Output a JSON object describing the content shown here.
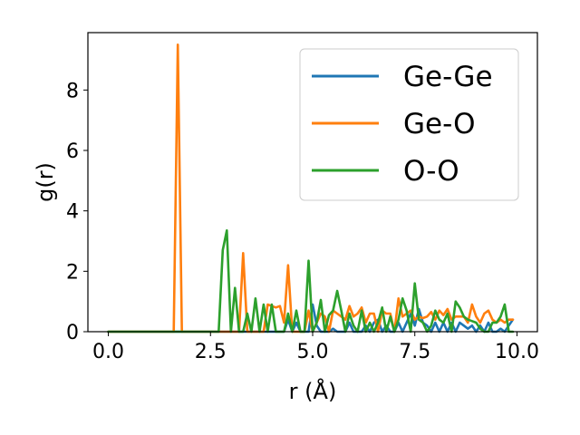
{
  "chart_data": {
    "type": "line",
    "title": "",
    "xlabel": "r (Å)",
    "ylabel": "g(r)",
    "xlim": [
      -0.5,
      10.5
    ],
    "ylim": [
      0,
      9.9
    ],
    "xticks": [
      0.0,
      2.5,
      5.0,
      7.5,
      10.0
    ],
    "xtick_labels": [
      "0.0",
      "2.5",
      "5.0",
      "7.5",
      "10.0"
    ],
    "yticks": [
      0,
      2,
      4,
      6,
      8
    ],
    "ytick_labels": [
      "0",
      "2",
      "4",
      "6",
      "8"
    ],
    "grid": false,
    "legend_position": "top-right",
    "series": [
      {
        "name": "Ge-Ge",
        "color": "#1f77b4",
        "x": [
          0.0,
          4.3,
          4.4,
          4.5,
          4.6,
          4.7,
          4.8,
          4.9,
          5.0,
          5.1,
          5.2,
          5.3,
          5.4,
          5.5,
          5.6,
          5.7,
          5.8,
          5.9,
          6.0,
          6.1,
          6.2,
          6.3,
          6.4,
          6.5,
          6.6,
          6.7,
          6.8,
          6.9,
          7.0,
          7.1,
          7.2,
          7.3,
          7.4,
          7.5,
          7.6,
          7.7,
          7.8,
          7.9,
          8.0,
          8.1,
          8.2,
          8.3,
          8.4,
          8.5,
          8.6,
          8.7,
          8.8,
          8.9,
          9.0,
          9.1,
          9.2,
          9.3,
          9.4,
          9.5,
          9.6,
          9.7,
          9.8,
          9.9
        ],
        "y": [
          0,
          0,
          0.4,
          0,
          0.3,
          0,
          0,
          0,
          0.9,
          0.2,
          0,
          0,
          0,
          0.1,
          0,
          0,
          0,
          0.3,
          0,
          0,
          0,
          0.2,
          0,
          0.3,
          0.4,
          0,
          0.2,
          0,
          0,
          0.3,
          0,
          0.3,
          0.6,
          0.2,
          0.75,
          0.3,
          0.2,
          0,
          0.3,
          0,
          0.3,
          0,
          0.3,
          0,
          0.3,
          0.2,
          0.1,
          0.2,
          0,
          0.2,
          0,
          0.3,
          0,
          0,
          0.1,
          0,
          0.2,
          0.4
        ]
      },
      {
        "name": "Ge-O",
        "color": "#ff7f0e",
        "x": [
          0.0,
          1.6,
          1.7,
          1.8,
          1.9,
          2.0,
          2.9,
          3.0,
          3.1,
          3.2,
          3.3,
          3.4,
          3.5,
          3.6,
          3.7,
          3.8,
          3.9,
          4.0,
          4.1,
          4.2,
          4.3,
          4.4,
          4.5,
          4.6,
          4.7,
          4.8,
          4.9,
          5.0,
          5.1,
          5.2,
          5.3,
          5.4,
          5.5,
          5.6,
          5.7,
          5.8,
          5.9,
          6.0,
          6.1,
          6.2,
          6.3,
          6.4,
          6.5,
          6.6,
          6.7,
          6.8,
          6.9,
          7.0,
          7.1,
          7.2,
          7.3,
          7.4,
          7.5,
          7.6,
          7.7,
          7.8,
          7.9,
          8.0,
          8.1,
          8.2,
          8.3,
          8.4,
          8.5,
          8.6,
          8.7,
          8.8,
          8.9,
          9.0,
          9.1,
          9.2,
          9.3,
          9.4,
          9.5,
          9.6,
          9.7,
          9.8,
          9.9
        ],
        "y": [
          0,
          0,
          9.5,
          0,
          0,
          0,
          0,
          0,
          0,
          0,
          2.6,
          0,
          0,
          0,
          0,
          0,
          0.9,
          0.85,
          0.8,
          0.85,
          0.3,
          2.2,
          0,
          0,
          0,
          0,
          0.7,
          0,
          0.3,
          0.6,
          0.5,
          0,
          0.7,
          0.6,
          0.5,
          0.4,
          0.85,
          0.5,
          0.6,
          0.8,
          0.3,
          0.6,
          0.6,
          0,
          0.7,
          0.6,
          0.6,
          0,
          1.1,
          0.5,
          0.6,
          0.7,
          0.4,
          0.5,
          0.45,
          0.5,
          0.65,
          0.4,
          0.7,
          0.55,
          0.75,
          0.4,
          0.5,
          0.5,
          0.5,
          0.3,
          0.9,
          0.5,
          0.3,
          0.6,
          0.7,
          0.4,
          0.3,
          0.4,
          0.3,
          0.4,
          0.4
        ]
      },
      {
        "name": "O-O",
        "color": "#2ca02c",
        "x": [
          0.0,
          2.7,
          2.8,
          2.9,
          3.0,
          3.1,
          3.2,
          3.3,
          3.4,
          3.5,
          3.6,
          3.7,
          3.8,
          3.9,
          4.0,
          4.1,
          4.2,
          4.3,
          4.4,
          4.5,
          4.6,
          4.7,
          4.8,
          4.9,
          5.0,
          5.1,
          5.2,
          5.3,
          5.4,
          5.5,
          5.6,
          5.7,
          5.8,
          5.9,
          6.0,
          6.1,
          6.2,
          6.3,
          6.4,
          6.5,
          6.6,
          6.7,
          6.8,
          6.9,
          7.0,
          7.1,
          7.2,
          7.3,
          7.4,
          7.5,
          7.6,
          7.7,
          7.8,
          7.9,
          8.0,
          8.1,
          8.2,
          8.3,
          8.4,
          8.5,
          8.6,
          8.7,
          8.8,
          8.9,
          9.0,
          9.1,
          9.2,
          9.3,
          9.4,
          9.5,
          9.6,
          9.7,
          9.8,
          9.9
        ],
        "y": [
          0,
          0,
          2.7,
          3.35,
          0,
          1.45,
          0,
          0,
          0.6,
          0,
          1.1,
          0,
          0.9,
          0,
          0.9,
          0,
          0,
          0,
          0.6,
          0,
          0.7,
          0,
          0,
          2.35,
          0,
          0.3,
          1.05,
          0,
          0.55,
          0.7,
          1.35,
          0.7,
          0,
          0.6,
          0.2,
          0,
          0.7,
          0,
          0.3,
          0,
          0.3,
          0.8,
          0,
          0.5,
          0,
          0.4,
          1.1,
          0.7,
          0,
          1.6,
          0.4,
          0.3,
          0,
          0.2,
          0.7,
          0.4,
          0.3,
          0.6,
          0,
          1.0,
          0.8,
          0.5,
          0.4,
          0.35,
          0.3,
          0.1,
          0,
          0,
          0.3,
          0.3,
          0.5,
          0.9,
          0,
          0
        ]
      }
    ]
  }
}
